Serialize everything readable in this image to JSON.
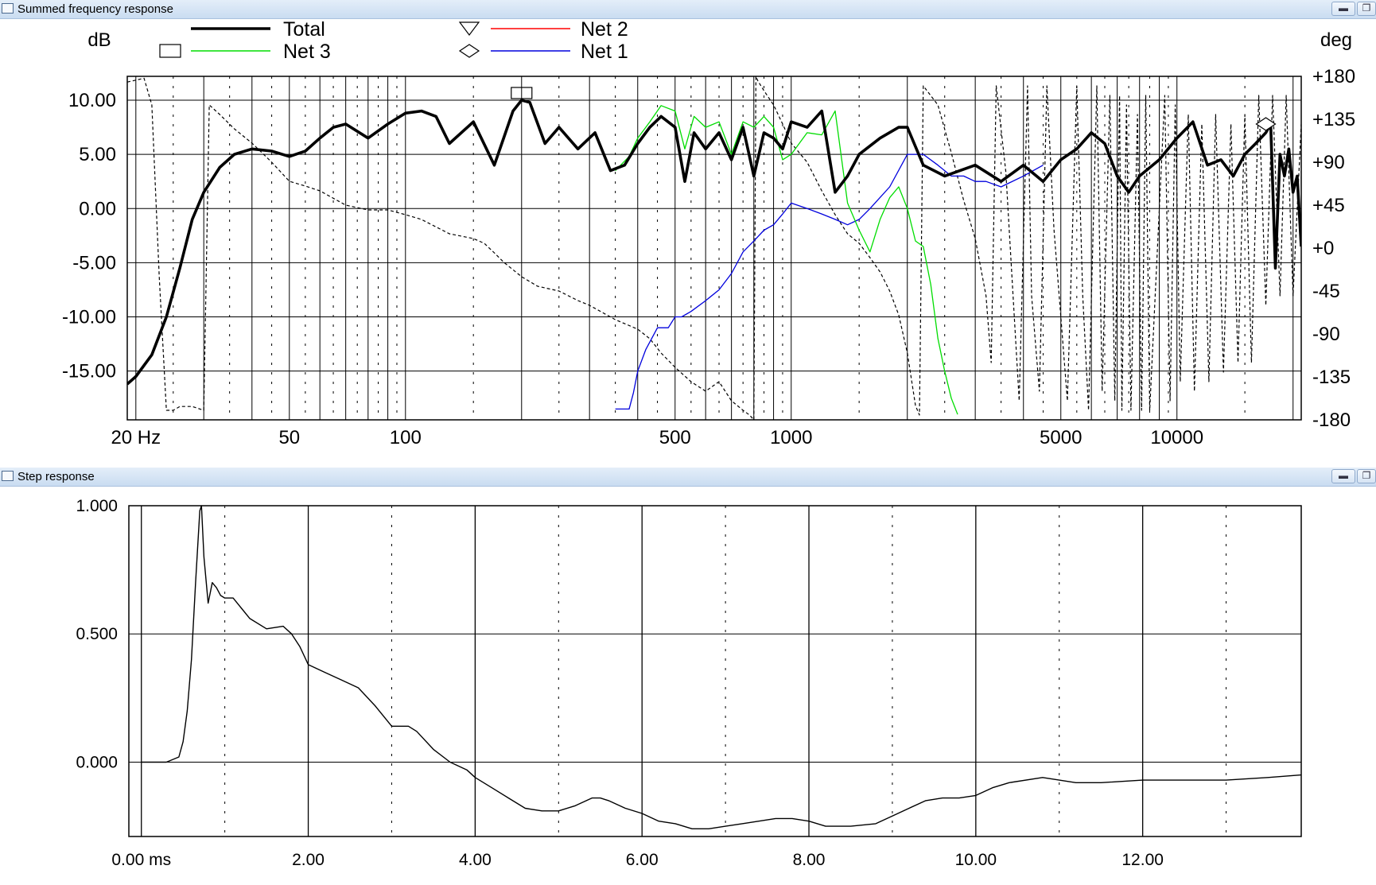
{
  "windows": {
    "freq": {
      "title": "Summed frequency response",
      "minimize_icon": "minimize-icon",
      "restore_icon": "restore-icon"
    },
    "step": {
      "title": "Step response",
      "minimize_icon": "minimize-icon",
      "restore_icon": "restore-icon"
    }
  },
  "chart_data": [
    {
      "type": "line",
      "ylabel": "dB",
      "y2label": "deg",
      "xscale": "log",
      "xlim": [
        19,
        21000
      ],
      "ylim": [
        -19.5,
        12.2
      ],
      "y2lim": [
        -180,
        180
      ],
      "grid": true,
      "legend_placement": "top",
      "xticks": [
        {
          "value": 20,
          "label": "20 Hz"
        },
        {
          "value": 50,
          "label": "50"
        },
        {
          "value": 100,
          "label": "100"
        },
        {
          "value": 500,
          "label": "500"
        },
        {
          "value": 1000,
          "label": "1000"
        },
        {
          "value": 5000,
          "label": "5000"
        },
        {
          "value": 10000,
          "label": "10000"
        }
      ],
      "yticks": [
        "10.00",
        "5.00",
        "0.00",
        "-5.00",
        "-10.00",
        "-15.00"
      ],
      "y2ticks": [
        "+180",
        "+135",
        "+90",
        "+45",
        "+0",
        "-45",
        "-90",
        "-135",
        "-180"
      ],
      "series": [
        {
          "name": "Total",
          "color": "#000000",
          "marker": "square",
          "x": [
            19,
            20,
            22,
            24,
            26,
            28,
            30,
            33,
            36,
            40,
            45,
            50,
            55,
            60,
            65,
            70,
            80,
            90,
            100,
            110,
            120,
            130,
            150,
            170,
            190,
            200,
            210,
            230,
            250,
            280,
            310,
            340,
            370,
            400,
            430,
            460,
            500,
            530,
            560,
            600,
            650,
            700,
            750,
            800,
            850,
            900,
            950,
            1000,
            1100,
            1200,
            1300,
            1400,
            1500,
            1700,
            1900,
            2000,
            2200,
            2500,
            3000,
            3500,
            4000,
            4500,
            5000,
            5500,
            6000,
            6500,
            7000,
            7500,
            8000,
            9000,
            10000,
            11000,
            12000,
            13000,
            14000,
            15000,
            16000,
            17000,
            17500,
            18000,
            18500,
            19000,
            19500,
            20000,
            20500,
            21000
          ],
          "y": [
            -16.2,
            -15.5,
            -13.5,
            -10,
            -5.5,
            -1,
            1.5,
            3.8,
            5,
            5.5,
            5.3,
            4.8,
            5.3,
            6.5,
            7.5,
            7.8,
            6.5,
            7.8,
            8.8,
            9,
            8.5,
            6,
            8,
            4,
            9,
            10,
            9.8,
            6,
            7.5,
            5.5,
            7,
            3.5,
            4,
            6,
            7.5,
            8.5,
            7.5,
            2.5,
            7,
            5.5,
            7,
            4.5,
            7.5,
            3,
            7,
            6.5,
            5.5,
            8,
            7.5,
            9,
            1.5,
            3,
            5,
            6.5,
            7.5,
            7.5,
            4,
            3,
            4,
            2.5,
            4,
            2.5,
            4.5,
            5.5,
            7,
            6,
            3,
            1.5,
            3,
            4.5,
            6.5,
            8,
            4,
            4.5,
            3,
            5,
            6,
            7,
            7.8,
            -5.5,
            5,
            3,
            5.5,
            1.5,
            3,
            -3.5
          ]
        },
        {
          "name": "Net 3",
          "color": "#00dd00",
          "marker": "square",
          "x": [
            350,
            380,
            400,
            430,
            460,
            500,
            530,
            560,
            600,
            650,
            700,
            750,
            800,
            850,
            900,
            950,
            1000,
            1100,
            1200,
            1300,
            1400,
            1500,
            1600,
            1700,
            1800,
            1900,
            2000,
            2100,
            2200,
            2300,
            2400,
            2500,
            2600,
            2700
          ],
          "y": [
            3.5,
            4.8,
            6.5,
            8,
            9.5,
            9,
            5.5,
            8.5,
            7.5,
            8,
            5,
            8,
            7.5,
            8.5,
            7.5,
            4.5,
            5,
            7,
            6.8,
            9,
            0.5,
            -2,
            -4,
            -1,
            1,
            2,
            0,
            -3,
            -3.5,
            -7,
            -12,
            -15,
            -17.5,
            -19
          ]
        },
        {
          "name": "Net 2",
          "color": "#ff0000",
          "marker": "triangle",
          "x": [],
          "y": []
        },
        {
          "name": "Net 1",
          "color": "#0000dd",
          "marker": "diamond",
          "x": [
            350,
            360,
            380,
            390,
            400,
            420,
            450,
            480,
            500,
            520,
            550,
            600,
            650,
            700,
            750,
            800,
            850,
            900,
            950,
            1000,
            1100,
            1200,
            1300,
            1400,
            1500,
            1600,
            1800,
            2000,
            2100,
            2200,
            2400,
            2600,
            2800,
            3000,
            3200,
            3500,
            4000,
            4500
          ],
          "y": [
            -18.5,
            -18.5,
            -18.5,
            -17,
            -15,
            -13,
            -11,
            -11,
            -10,
            -10,
            -9.5,
            -8.5,
            -7.5,
            -6,
            -4,
            -3,
            -2,
            -1.5,
            -0.5,
            0.5,
            0,
            -0.5,
            -1,
            -1.5,
            -1,
            0,
            2,
            5,
            5,
            5,
            4,
            3,
            3,
            2.5,
            2.5,
            2,
            3,
            4
          ]
        },
        {
          "name": "",
          "color": "#000000",
          "dashed": true,
          "axis": "right",
          "x": [
            19,
            20,
            21,
            22,
            23,
            24,
            25,
            26,
            28,
            30,
            31,
            33,
            36,
            40,
            45,
            50,
            55,
            60,
            70,
            80,
            90,
            100,
            110,
            130,
            150,
            160,
            170,
            180,
            200,
            220,
            250,
            280,
            300,
            350,
            400,
            430,
            460,
            500,
            550,
            600,
            650,
            700,
            750,
            780,
            800,
            810,
            820,
            850,
            900,
            950,
            1000,
            1100,
            1200,
            1300,
            1400,
            1500,
            1600,
            1700,
            1800,
            1900,
            2000,
            2100,
            2150,
            2200,
            2400,
            2600,
            2800,
            3000,
            3200,
            3300,
            3400,
            3600,
            3900,
            4100,
            4200,
            4400,
            4600,
            4800,
            5200,
            5500,
            5700,
            5900,
            6200,
            6400,
            6700,
            6900,
            7100,
            7200,
            7400,
            7600,
            7900,
            8100,
            8300,
            8500,
            9300,
            9600,
            9900,
            10200,
            10700,
            11100,
            11600,
            12100,
            12600,
            13200,
            13800,
            14400,
            15000,
            15600,
            16300,
            17000,
            17700,
            18500,
            19200,
            20000,
            21000
          ],
          "y": [
            174,
            176,
            178,
            150,
            -30,
            -170,
            -170,
            -166,
            -166,
            -170,
            150,
            140,
            125,
            110,
            90,
            70,
            65,
            60,
            45,
            40,
            40,
            35,
            30,
            15,
            10,
            5,
            -5,
            -15,
            -30,
            -40,
            -45,
            -55,
            -60,
            -75,
            -85,
            -95,
            -110,
            -125,
            -140,
            -150,
            -140,
            -160,
            -170,
            -175,
            -180,
            180,
            175,
            165,
            150,
            130,
            110,
            90,
            60,
            35,
            15,
            5,
            -10,
            -25,
            -45,
            -70,
            -110,
            -165,
            -175,
            170,
            150,
            100,
            50,
            10,
            -50,
            -120,
            170,
            80,
            -160,
            170,
            -50,
            -150,
            170,
            20,
            -160,
            170,
            -50,
            -170,
            170,
            -150,
            160,
            -160,
            160,
            -170,
            150,
            -170,
            140,
            -170,
            160,
            -170,
            160,
            -160,
            150,
            -140,
            140,
            -150,
            130,
            -140,
            140,
            -130,
            130,
            -120,
            140,
            -120,
            160,
            -60,
            160,
            -50,
            160,
            -50,
            130
          ]
        }
      ]
    },
    {
      "type": "line",
      "xlabel": "",
      "ylabel": "",
      "xlim": [
        -0.15,
        13.9
      ],
      "ylim": [
        -0.29,
        1.0
      ],
      "grid": true,
      "xticks": [
        {
          "value": 0,
          "label": "0.00 ms"
        },
        {
          "value": 2,
          "label": "2.00"
        },
        {
          "value": 4,
          "label": "4.00"
        },
        {
          "value": 6,
          "label": "6.00"
        },
        {
          "value": 8,
          "label": "8.00"
        },
        {
          "value": 10,
          "label": "10.00"
        },
        {
          "value": 12,
          "label": "12.00"
        }
      ],
      "yticks": [
        {
          "value": 1.0,
          "label": "1.000"
        },
        {
          "value": 0.5,
          "label": "0.500"
        },
        {
          "value": 0.0,
          "label": "0.000"
        }
      ],
      "series": [
        {
          "name": "",
          "color": "#000000",
          "x": [
            0,
            0.3,
            0.45,
            0.5,
            0.55,
            0.6,
            0.65,
            0.7,
            0.72,
            0.75,
            0.8,
            0.85,
            0.9,
            0.95,
            1.0,
            1.1,
            1.2,
            1.3,
            1.5,
            1.7,
            1.8,
            1.9,
            2.0,
            2.2,
            2.4,
            2.6,
            2.8,
            3.0,
            3.2,
            3.3,
            3.5,
            3.7,
            3.9,
            4.0,
            4.2,
            4.4,
            4.6,
            4.8,
            5.0,
            5.2,
            5.4,
            5.5,
            5.6,
            5.8,
            6.0,
            6.2,
            6.4,
            6.6,
            6.8,
            7.0,
            7.2,
            7.4,
            7.6,
            7.8,
            8.0,
            8.2,
            8.5,
            8.8,
            9.0,
            9.2,
            9.4,
            9.6,
            9.8,
            10.0,
            10.2,
            10.4,
            10.8,
            11.0,
            11.2,
            11.5,
            12.0,
            12.5,
            13.0,
            13.5,
            13.9
          ],
          "y": [
            0,
            0,
            0.02,
            0.08,
            0.2,
            0.4,
            0.7,
            0.98,
            1.0,
            0.8,
            0.62,
            0.7,
            0.68,
            0.65,
            0.64,
            0.64,
            0.6,
            0.56,
            0.52,
            0.53,
            0.5,
            0.45,
            0.38,
            0.35,
            0.32,
            0.29,
            0.22,
            0.14,
            0.14,
            0.12,
            0.05,
            0,
            -0.03,
            -0.06,
            -0.1,
            -0.14,
            -0.18,
            -0.19,
            -0.19,
            -0.17,
            -0.14,
            -0.14,
            -0.15,
            -0.18,
            -0.2,
            -0.23,
            -0.24,
            -0.26,
            -0.26,
            -0.25,
            -0.24,
            -0.23,
            -0.22,
            -0.22,
            -0.23,
            -0.25,
            -0.25,
            -0.24,
            -0.21,
            -0.18,
            -0.15,
            -0.14,
            -0.14,
            -0.13,
            -0.1,
            -0.08,
            -0.06,
            -0.07,
            -0.08,
            -0.08,
            -0.07,
            -0.07,
            -0.07,
            -0.06,
            -0.05
          ]
        }
      ]
    }
  ]
}
